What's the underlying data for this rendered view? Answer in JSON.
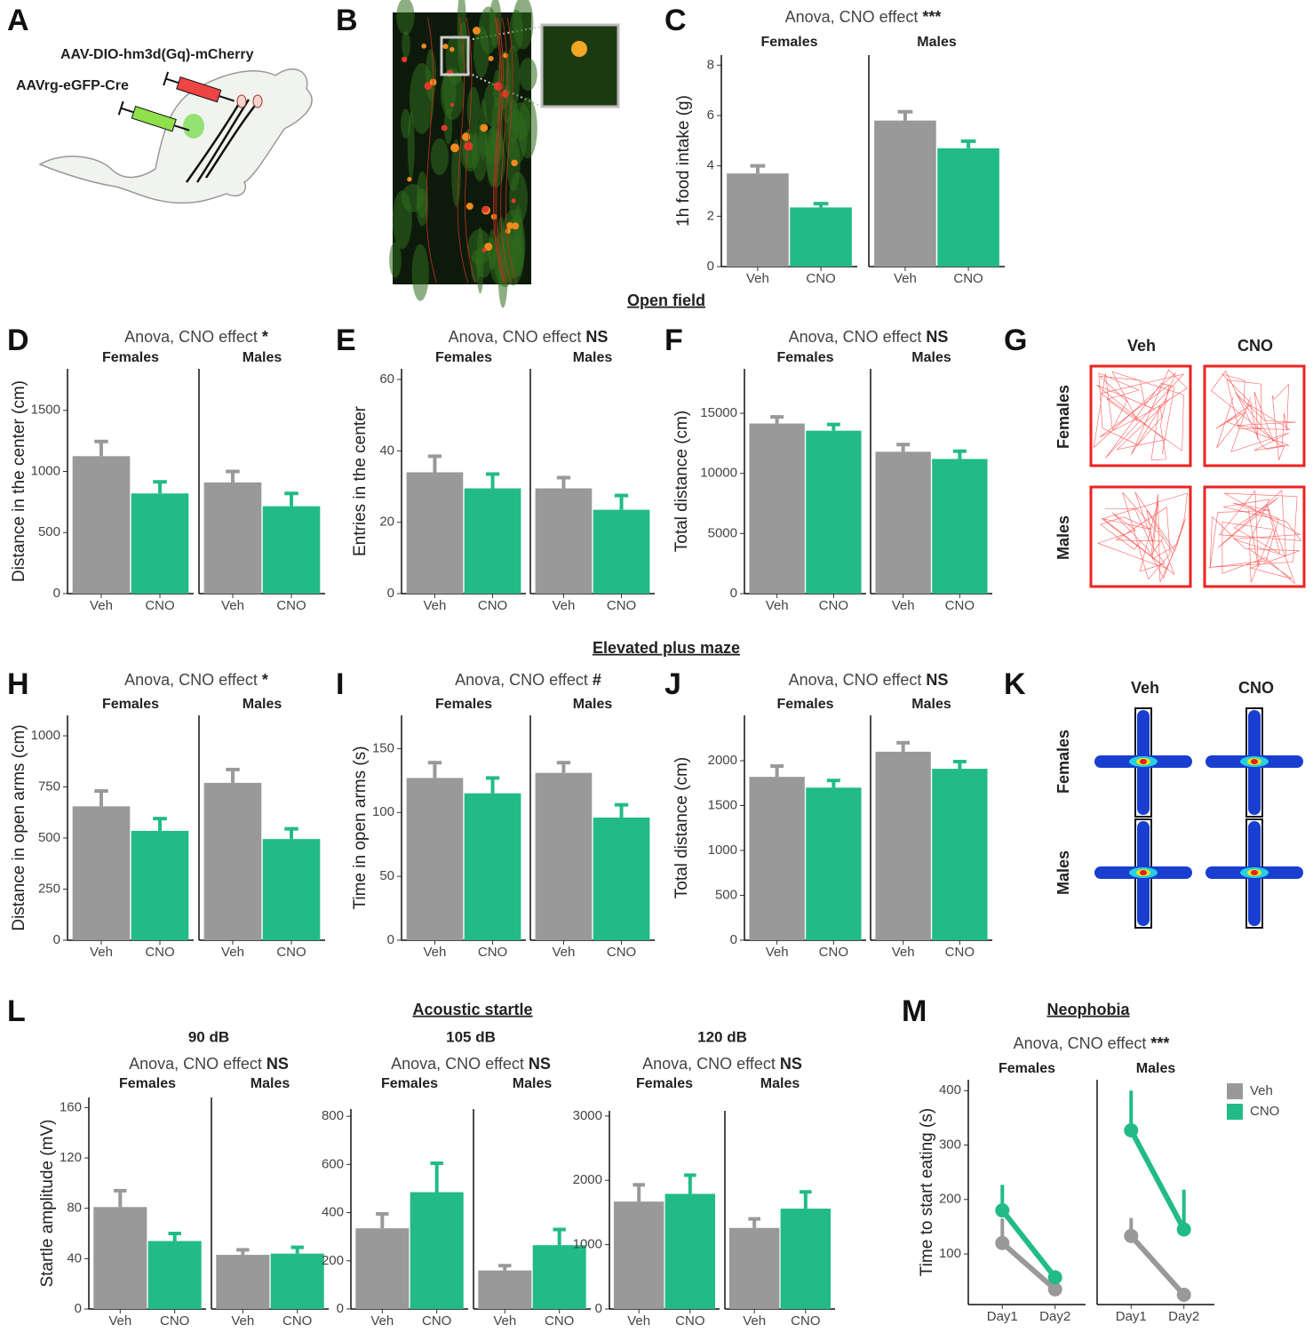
{
  "panel_labels": [
    "A",
    "B",
    "C",
    "D",
    "E",
    "F",
    "G",
    "H",
    "I",
    "J",
    "K",
    "L",
    "M"
  ],
  "section_titles": [
    "Open field",
    "Elevated plus maze",
    "Acoustic startle",
    "Neophobia"
  ],
  "schematic_labels": [
    "AAV-DIO-hm3d(Gq)-mCherry",
    "AAVrg-eGFP-Cre"
  ],
  "track_grids": [
    {
      "columns": [
        "Veh",
        "CNO"
      ],
      "rows": [
        "Females",
        "Males"
      ]
    },
    {
      "columns": [
        "Veh",
        "CNO"
      ],
      "rows": [
        "Females",
        "Males"
      ]
    }
  ],
  "chart_data": [
    {
      "type": "bar",
      "title": "Anova, CNO effect",
      "significance": "***",
      "ylabel": "1h food intake (g)",
      "categories": [
        "Veh",
        "CNO"
      ],
      "colors": [
        "#999999",
        "#22bb88"
      ],
      "facets": [
        {
          "title": "Females",
          "values": [
            3.7,
            2.35
          ],
          "errors": [
            0.3,
            0.15
          ]
        },
        {
          "title": "Males",
          "values": [
            5.8,
            4.7
          ],
          "errors": [
            0.35,
            0.28
          ]
        }
      ],
      "ylim": [
        0,
        8.4
      ],
      "yticks": [
        0,
        2,
        4,
        6,
        8
      ]
    },
    {
      "type": "bar",
      "title": "Anova, CNO effect",
      "significance": "*",
      "ylabel": "Distance in the center (cm)",
      "categories": [
        "Veh",
        "CNO"
      ],
      "colors": [
        "#999999",
        "#22bb88"
      ],
      "facets": [
        {
          "title": "Females",
          "values": [
            1125,
            820
          ],
          "errors": [
            120,
            95
          ]
        },
        {
          "title": "Males",
          "values": [
            910,
            715
          ],
          "errors": [
            90,
            105
          ]
        }
      ],
      "ylim": [
        0,
        1840
      ],
      "yticks": [
        0,
        500,
        1000,
        1500
      ]
    },
    {
      "type": "bar",
      "title": "Anova, CNO effect",
      "significance": "NS",
      "ylabel": "Entries in the center",
      "categories": [
        "Veh",
        "CNO"
      ],
      "colors": [
        "#999999",
        "#22bb88"
      ],
      "facets": [
        {
          "title": "Females",
          "values": [
            34,
            29.5
          ],
          "errors": [
            4.5,
            4
          ]
        },
        {
          "title": "Males",
          "values": [
            29.5,
            23.5
          ],
          "errors": [
            3,
            4
          ]
        }
      ],
      "ylim": [
        0,
        63
      ],
      "yticks": [
        0,
        20,
        40,
        60
      ]
    },
    {
      "type": "bar",
      "title": "Anova, CNO effect",
      "significance": "NS",
      "ylabel": "Total distance (cm)",
      "categories": [
        "Veh",
        "CNO"
      ],
      "colors": [
        "#999999",
        "#22bb88"
      ],
      "facets": [
        {
          "title": "Females",
          "values": [
            14150,
            13550
          ],
          "errors": [
            550,
            520
          ]
        },
        {
          "title": "Males",
          "values": [
            11800,
            11200
          ],
          "errors": [
            600,
            650
          ]
        }
      ],
      "ylim": [
        0,
        18700
      ],
      "yticks": [
        0,
        5000,
        10000,
        15000
      ]
    },
    {
      "type": "bar",
      "title": "Anova, CNO effect",
      "significance": "*",
      "ylabel": "Distance in open arms (cm)",
      "categories": [
        "Veh",
        "CNO"
      ],
      "colors": [
        "#999999",
        "#22bb88"
      ],
      "facets": [
        {
          "title": "Females",
          "values": [
            655,
            535
          ],
          "errors": [
            75,
            60
          ]
        },
        {
          "title": "Males",
          "values": [
            770,
            495
          ],
          "errors": [
            65,
            50
          ]
        }
      ],
      "ylim": [
        0,
        1100
      ],
      "yticks": [
        0,
        250,
        500,
        750,
        1000
      ]
    },
    {
      "type": "bar",
      "title": "Anova, CNO effect",
      "significance": "#",
      "ylabel": "Time in open arms (s)",
      "categories": [
        "Veh",
        "CNO"
      ],
      "colors": [
        "#999999",
        "#22bb88"
      ],
      "facets": [
        {
          "title": "Females",
          "values": [
            127,
            115
          ],
          "errors": [
            12,
            12
          ]
        },
        {
          "title": "Males",
          "values": [
            131,
            96
          ],
          "errors": [
            8,
            10
          ]
        }
      ],
      "ylim": [
        0,
        176
      ],
      "yticks": [
        0,
        50,
        100,
        150
      ]
    },
    {
      "type": "bar",
      "title": "Anova, CNO effect",
      "significance": "NS",
      "ylabel": "Total distance (cm)",
      "categories": [
        "Veh",
        "CNO"
      ],
      "colors": [
        "#999999",
        "#22bb88"
      ],
      "facets": [
        {
          "title": "Females",
          "values": [
            1820,
            1700
          ],
          "errors": [
            120,
            80
          ]
        },
        {
          "title": "Males",
          "values": [
            2100,
            1910
          ],
          "errors": [
            100,
            80
          ]
        }
      ],
      "ylim": [
        0,
        2505
      ],
      "yticks": [
        0,
        500,
        1000,
        1500,
        2000
      ]
    },
    {
      "type": "bar",
      "subtitle": "90 dB",
      "title": "Anova, CNO effect",
      "significance": "NS",
      "ylabel": "Startle amplitude (mV)",
      "categories": [
        "Veh",
        "CNO"
      ],
      "colors": [
        "#999999",
        "#22bb88"
      ],
      "facets": [
        {
          "title": "Females",
          "values": [
            81,
            54
          ],
          "errors": [
            13,
            6
          ]
        },
        {
          "title": "Males",
          "values": [
            43,
            44
          ],
          "errors": [
            4,
            5
          ]
        }
      ],
      "ylim": [
        0,
        168
      ],
      "yticks": [
        0,
        40,
        80,
        120,
        160
      ]
    },
    {
      "type": "bar",
      "subtitle": "105 dB",
      "title": "Anova, CNO effect",
      "significance": "NS",
      "categories": [
        "Veh",
        "CNO"
      ],
      "colors": [
        "#999999",
        "#22bb88"
      ],
      "facets": [
        {
          "title": "Females",
          "values": [
            335,
            485
          ],
          "errors": [
            60,
            120
          ]
        },
        {
          "title": "Males",
          "values": [
            160,
            265
          ],
          "errors": [
            20,
            65
          ]
        }
      ],
      "ylim": [
        0,
        830
      ],
      "yticks": [
        0,
        200,
        400,
        600,
        800
      ]
    },
    {
      "type": "bar",
      "subtitle": "120 dB",
      "title": "Anova, CNO effect",
      "significance": "NS",
      "categories": [
        "Veh",
        "CNO"
      ],
      "colors": [
        "#999999",
        "#22bb88"
      ],
      "facets": [
        {
          "title": "Females",
          "values": [
            1670,
            1790
          ],
          "errors": [
            260,
            290
          ]
        },
        {
          "title": "Males",
          "values": [
            1260,
            1560
          ],
          "errors": [
            140,
            260
          ]
        }
      ],
      "ylim": [
        0,
        3080
      ],
      "yticks": [
        0,
        1000,
        2000,
        3000
      ]
    },
    {
      "type": "line",
      "title": "Anova, CNO effect",
      "significance": "***",
      "ylabel": "Time to start eating (s)",
      "categories": [
        "Day1",
        "Day2"
      ],
      "facets": [
        "Females",
        "Males"
      ],
      "series": [
        {
          "name": "Veh",
          "color": "#999999",
          "values": [
            [
              120,
              35
            ],
            [
              133,
              25
            ]
          ],
          "errors": [
            [
              45,
              6
            ],
            [
              33,
              4
            ]
          ]
        },
        {
          "name": "CNO",
          "color": "#22bb88",
          "values": [
            [
              180,
              57
            ],
            [
              327,
              145
            ]
          ],
          "errors": [
            [
              47,
              6
            ],
            [
              73,
              73
            ]
          ]
        }
      ],
      "ylim": [
        7,
        420
      ],
      "yticks": [
        100,
        200,
        300,
        400
      ],
      "legend": "right"
    }
  ]
}
